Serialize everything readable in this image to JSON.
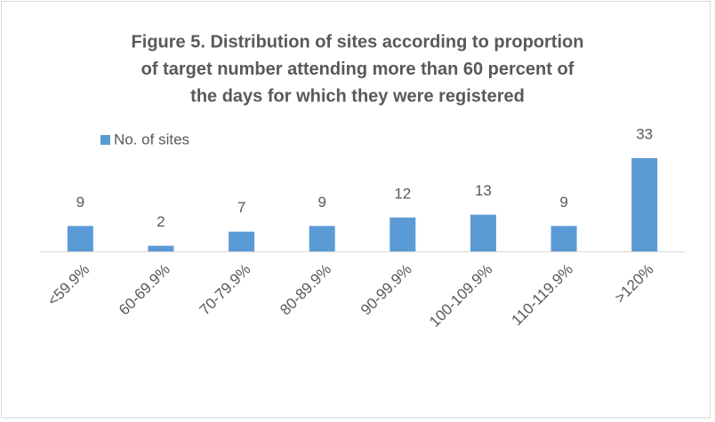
{
  "chart_data": {
    "type": "bar",
    "title": [
      "Figure 5. Distribution of sites according to proportion",
      "of target number attending more than 60 percent of",
      "the days for which they were registered"
    ],
    "categories": [
      "<59.9%",
      "60-69.9%",
      "70-79.9%",
      "80-89.9%",
      "90-99.9%",
      "100-109.9%",
      "110-119.9%",
      ">120%"
    ],
    "series": [
      {
        "name": "No. of sites",
        "color": "#5b9bd5",
        "values": [
          9,
          2,
          7,
          9,
          12,
          13,
          9,
          33
        ]
      }
    ]
  }
}
